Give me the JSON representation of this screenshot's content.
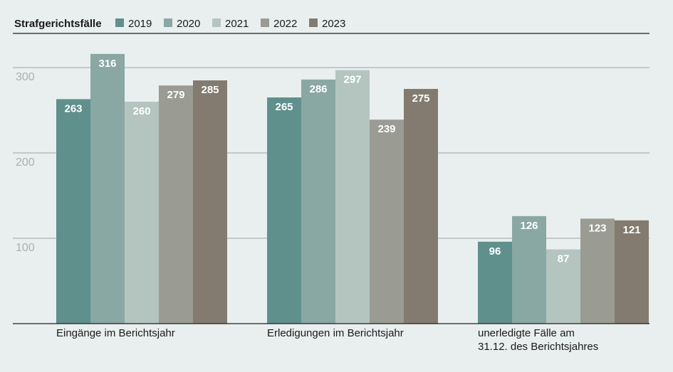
{
  "chart_data": {
    "type": "bar",
    "title": "Strafgerichtsfälle",
    "categories": [
      "Eingänge im Berichtsjahr",
      "Erledigungen im Berichtsjahr",
      "unerledigte Fälle am\n31.12. des Berichtsjahres"
    ],
    "series": [
      {
        "name": "2019",
        "color": "#5f908c",
        "values": [
          263,
          265,
          96
        ]
      },
      {
        "name": "2020",
        "color": "#89a8a3",
        "values": [
          316,
          286,
          126
        ]
      },
      {
        "name": "2021",
        "color": "#b4c5c0",
        "values": [
          260,
          297,
          87
        ]
      },
      {
        "name": "2022",
        "color": "#9a9b92",
        "values": [
          279,
          239,
          123
        ]
      },
      {
        "name": "2023",
        "color": "#837b6f",
        "values": [
          285,
          275,
          121
        ]
      }
    ],
    "ylim": [
      0,
      340
    ],
    "yticks": [
      100,
      200,
      300
    ],
    "grid": true
  }
}
